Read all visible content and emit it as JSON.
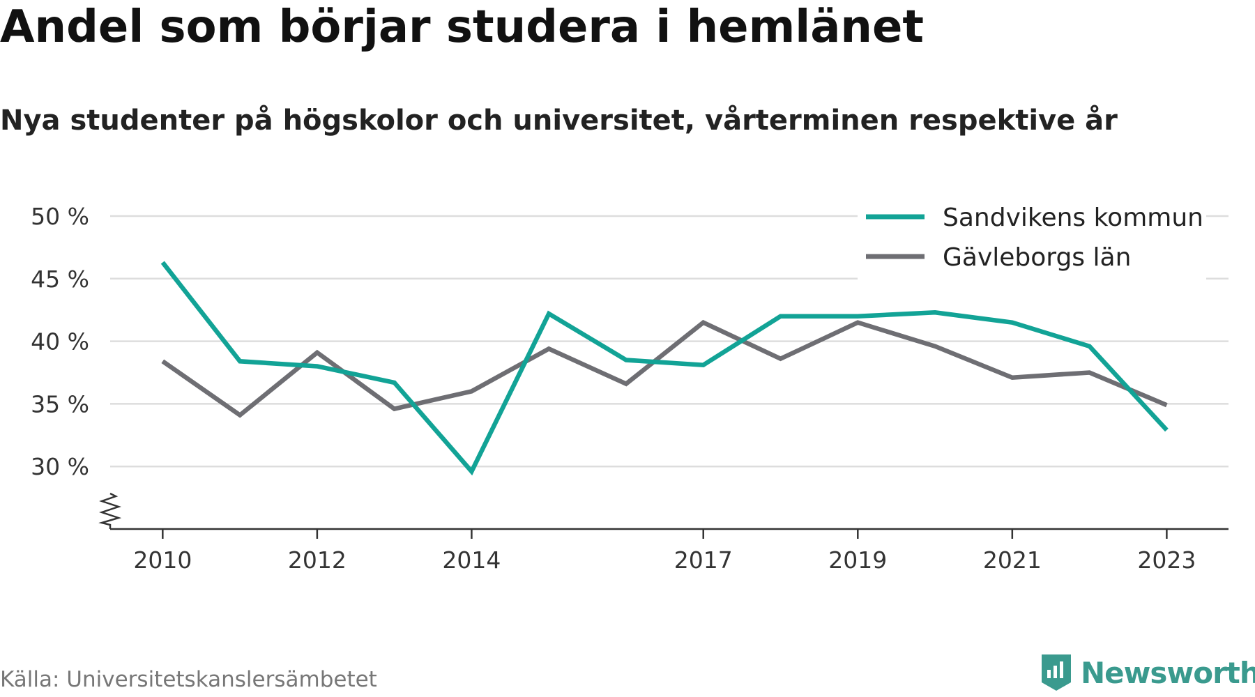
{
  "header": {
    "title": "Andel som börjar studera i hemlänet",
    "subtitle": "Nya studenter på högskolor och universitet, vårterminen respektive år"
  },
  "footer": {
    "source": "Källa: Universitetskanslersämbetet",
    "brand": "Newsworthy"
  },
  "colors": {
    "sandviken": "#12a396",
    "gavleborg": "#6e6e73",
    "grid": "#dddddd",
    "axis": "#333333",
    "brand": "#3a9a8e"
  },
  "icons": {
    "brand_logo": "bar-chart-badge-icon",
    "axis_break": "zigzag-break-icon"
  },
  "chart_data": {
    "type": "line",
    "title": "Andel som börjar studera i hemlänet",
    "subtitle": "Nya studenter på högskolor och universitet, vårterminen respektive år",
    "x": [
      2010,
      2011,
      2012,
      2013,
      2014,
      2015,
      2016,
      2017,
      2018,
      2019,
      2020,
      2021,
      2022,
      2023
    ],
    "x_tick_labels": [
      "2010",
      "2012",
      "2014",
      "2017",
      "2019",
      "2021",
      "2023"
    ],
    "x_ticks": [
      2010,
      2012,
      2014,
      2017,
      2019,
      2021,
      2023
    ],
    "y_ticks": [
      30,
      35,
      40,
      45,
      50
    ],
    "y_tick_labels": [
      "30 %",
      "35 %",
      "40 %",
      "45 %",
      "50 %"
    ],
    "ylim": [
      25,
      50
    ],
    "y_axis_break": true,
    "grid": true,
    "legend_position": "top-right",
    "series": [
      {
        "name": "Sandvikens kommun",
        "values": [
          46.3,
          38.4,
          38.0,
          36.7,
          29.6,
          42.2,
          38.5,
          38.1,
          42.0,
          42.0,
          42.3,
          41.5,
          39.6,
          32.9
        ]
      },
      {
        "name": "Gävleborgs län",
        "values": [
          38.4,
          34.1,
          39.1,
          34.6,
          36.0,
          39.4,
          36.6,
          41.5,
          38.6,
          41.5,
          39.6,
          37.1,
          37.5,
          34.9
        ]
      }
    ]
  }
}
